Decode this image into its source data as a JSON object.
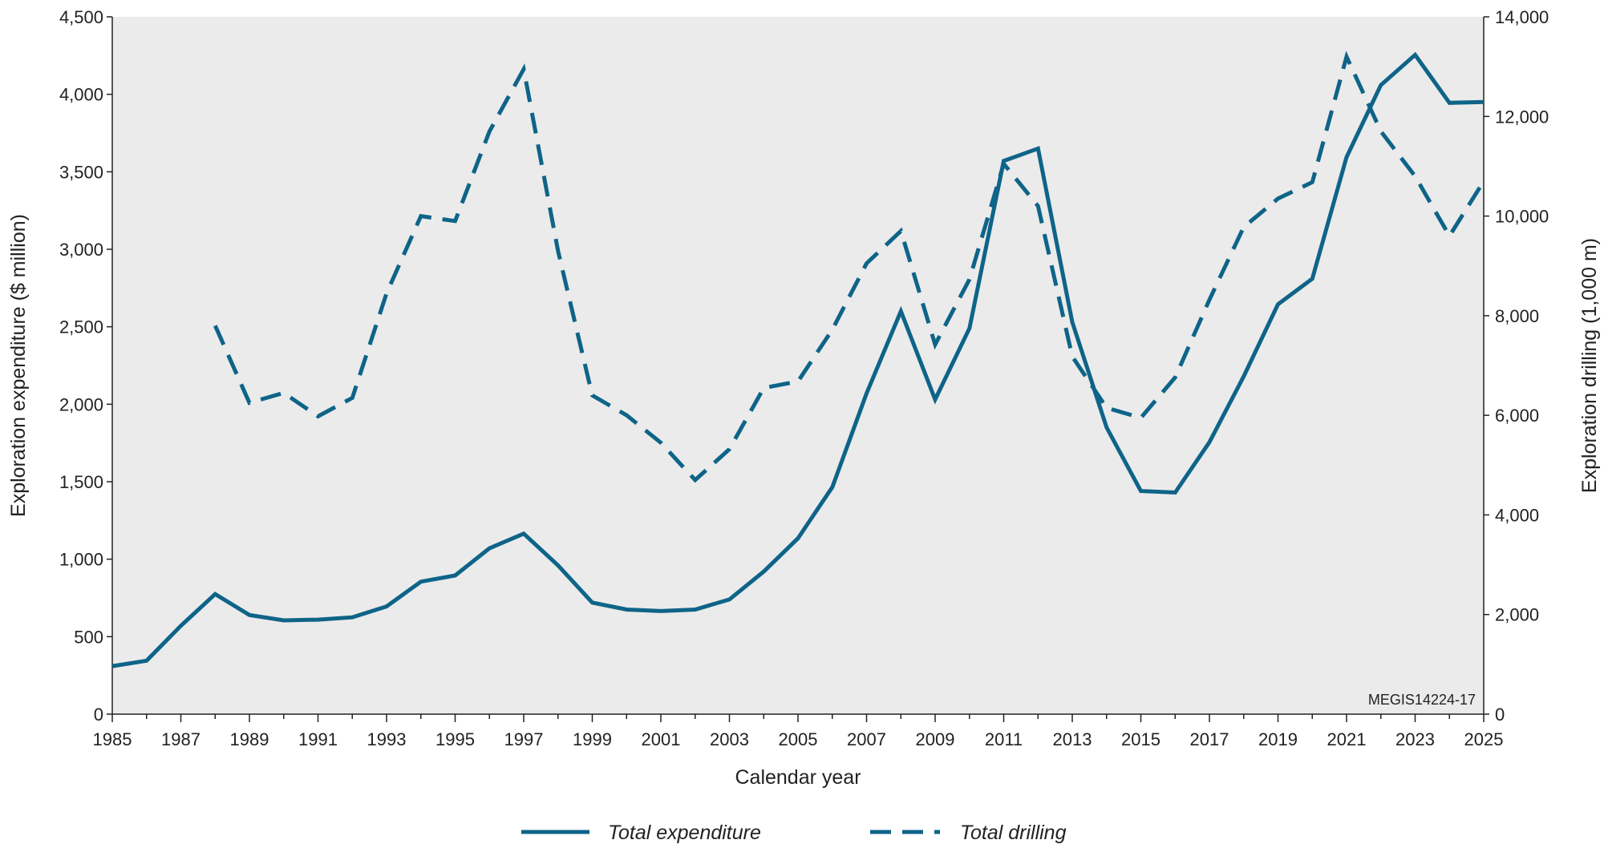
{
  "chart_data": {
    "type": "line",
    "title": "",
    "xlabel": "Calendar year",
    "ylabel_left": "Exploration expenditure ($ million)",
    "ylabel_right": "Exploration drilling (1,000 m)",
    "xlim": [
      1985,
      2025
    ],
    "ylim_left": [
      0,
      4500
    ],
    "ylim_right": [
      0,
      14000
    ],
    "grid": false,
    "legend_position": "bottom",
    "plot_background": "#ebebeb",
    "x_ticks": [
      "1985",
      "1987",
      "1989",
      "1991",
      "1993",
      "1995",
      "1997",
      "1999",
      "2001",
      "2003",
      "2005",
      "2007",
      "2009",
      "2011",
      "2013",
      "2015",
      "2017",
      "2019",
      "2021",
      "2023",
      "2025"
    ],
    "y_left_ticks": [
      "0",
      "500",
      "1,000",
      "1,500",
      "2,000",
      "2,500",
      "3,000",
      "3,500",
      "4,000",
      "4,500"
    ],
    "y_right_ticks": [
      "0",
      "2,000",
      "4,000",
      "6,000",
      "8,000",
      "10,000",
      "12,000",
      "14,000"
    ],
    "annotation": "MEGIS14224-17",
    "series": [
      {
        "name": "Total expenditure",
        "axis": "left",
        "style": "solid",
        "color": "#0e6488",
        "x": [
          1985,
          1986,
          1987,
          1988,
          1989,
          1990,
          1991,
          1992,
          1993,
          1994,
          1995,
          1996,
          1997,
          1998,
          1999,
          2000,
          2001,
          2002,
          2003,
          2004,
          2005,
          2006,
          2007,
          2008,
          2009,
          2010,
          2011,
          2012,
          2013,
          2014,
          2015,
          2016,
          2017,
          2018,
          2019,
          2020,
          2021,
          2022,
          2023,
          2024,
          2025
        ],
        "values": [
          310,
          345,
          570,
          775,
          640,
          605,
          610,
          625,
          695,
          855,
          895,
          1070,
          1165,
          960,
          720,
          675,
          665,
          675,
          740,
          920,
          1135,
          1465,
          2070,
          2600,
          2030,
          2490,
          3570,
          3650,
          2530,
          1850,
          1440,
          1430,
          1755,
          2180,
          2645,
          2810,
          3595,
          4060,
          4255,
          3945,
          3950
        ]
      },
      {
        "name": "Total drilling",
        "axis": "right",
        "style": "dashed",
        "color": "#0e6488",
        "x": [
          1988,
          1989,
          1990,
          1991,
          1992,
          1993,
          1994,
          1995,
          1996,
          1997,
          1998,
          1999,
          2000,
          2001,
          2002,
          2003,
          2004,
          2005,
          2006,
          2007,
          2008,
          2009,
          2010,
          2011,
          2012,
          2013,
          2014,
          2015,
          2016,
          2017,
          2018,
          2019,
          2020,
          2021,
          2022,
          2023,
          2024,
          2025
        ],
        "values": [
          7800,
          6250,
          6450,
          5980,
          6350,
          8450,
          10000,
          9900,
          11700,
          12950,
          9300,
          6400,
          6000,
          5450,
          4700,
          5320,
          6550,
          6680,
          7720,
          9050,
          9700,
          7420,
          8730,
          11050,
          10200,
          7180,
          6150,
          5950,
          6760,
          8320,
          9780,
          10350,
          10680,
          13200,
          11700,
          10800,
          9600,
          10700
        ]
      }
    ]
  }
}
